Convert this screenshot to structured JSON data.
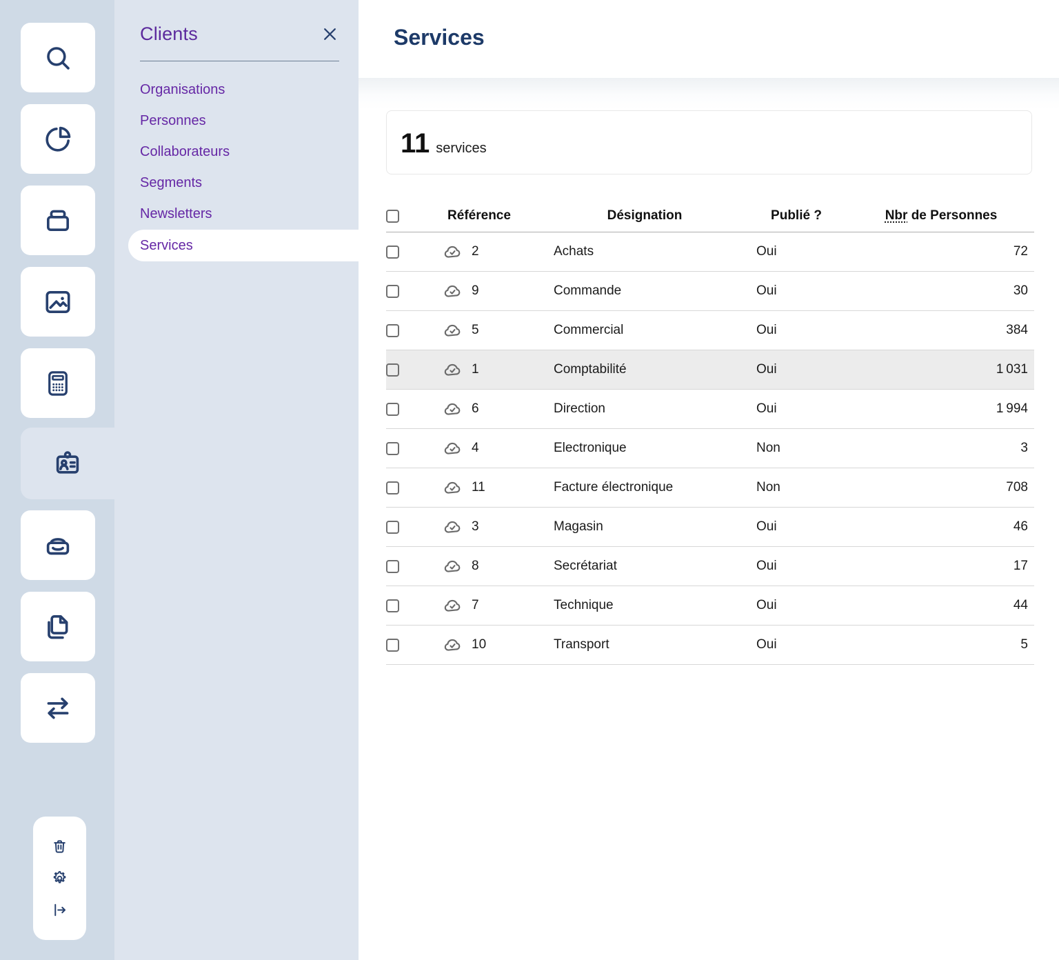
{
  "sidebar": {
    "tiles": [
      {
        "icon": "search"
      },
      {
        "icon": "pie-chart"
      },
      {
        "icon": "archive-box"
      },
      {
        "icon": "image"
      },
      {
        "icon": "calculator"
      },
      {
        "icon": "id-badge",
        "active": true
      },
      {
        "icon": "storage-tray"
      },
      {
        "icon": "copy"
      },
      {
        "icon": "transfer-arrows"
      }
    ],
    "footer_icons": [
      {
        "icon": "trash"
      },
      {
        "icon": "settings-gear"
      },
      {
        "icon": "logout"
      }
    ]
  },
  "panel": {
    "title": "Clients",
    "close_icon": "close",
    "items": [
      {
        "label": "Organisations"
      },
      {
        "label": "Personnes"
      },
      {
        "label": "Collaborateurs"
      },
      {
        "label": "Segments"
      },
      {
        "label": "Newsletters"
      },
      {
        "label": "Services",
        "active": true
      }
    ]
  },
  "main": {
    "title": "Services",
    "count": "11",
    "count_label": "services",
    "table": {
      "col_reference": "Référence",
      "col_designation": "Désignation",
      "col_published": "Publié ?",
      "col_count_abbr": "Nbr",
      "col_count_rest": "de Personnes",
      "row_icon": "cloud-check",
      "rows": [
        {
          "reference": "2",
          "designation": "Achats",
          "published": "Oui",
          "count": "72"
        },
        {
          "reference": "9",
          "designation": "Commande",
          "published": "Oui",
          "count": "30"
        },
        {
          "reference": "5",
          "designation": "Commercial",
          "published": "Oui",
          "count": "384"
        },
        {
          "reference": "1",
          "designation": "Comptabilité",
          "published": "Oui",
          "count": "1 031",
          "highlighted": true
        },
        {
          "reference": "6",
          "designation": "Direction",
          "published": "Oui",
          "count": "1 994"
        },
        {
          "reference": "4",
          "designation": "Electronique",
          "published": "Non",
          "count": "3"
        },
        {
          "reference": "11",
          "designation": "Facture électronique",
          "published": "Non",
          "count": "708"
        },
        {
          "reference": "3",
          "designation": "Magasin",
          "published": "Oui",
          "count": "46"
        },
        {
          "reference": "8",
          "designation": "Secrétariat",
          "published": "Oui",
          "count": "17"
        },
        {
          "reference": "7",
          "designation": "Technique",
          "published": "Oui",
          "count": "44"
        },
        {
          "reference": "10",
          "designation": "Transport",
          "published": "Oui",
          "count": "5"
        }
      ]
    }
  },
  "colors": {
    "sidebar_bg": "#cfdae6",
    "panel_bg": "#dde4ee",
    "accent_purple": "#6527a5",
    "panel_title_purple": "#5c2a9d",
    "icon_navy": "#27406e",
    "title_navy": "#1d3a68",
    "row_highlight": "#ececec",
    "cloud_gray": "#6b6b6b"
  }
}
